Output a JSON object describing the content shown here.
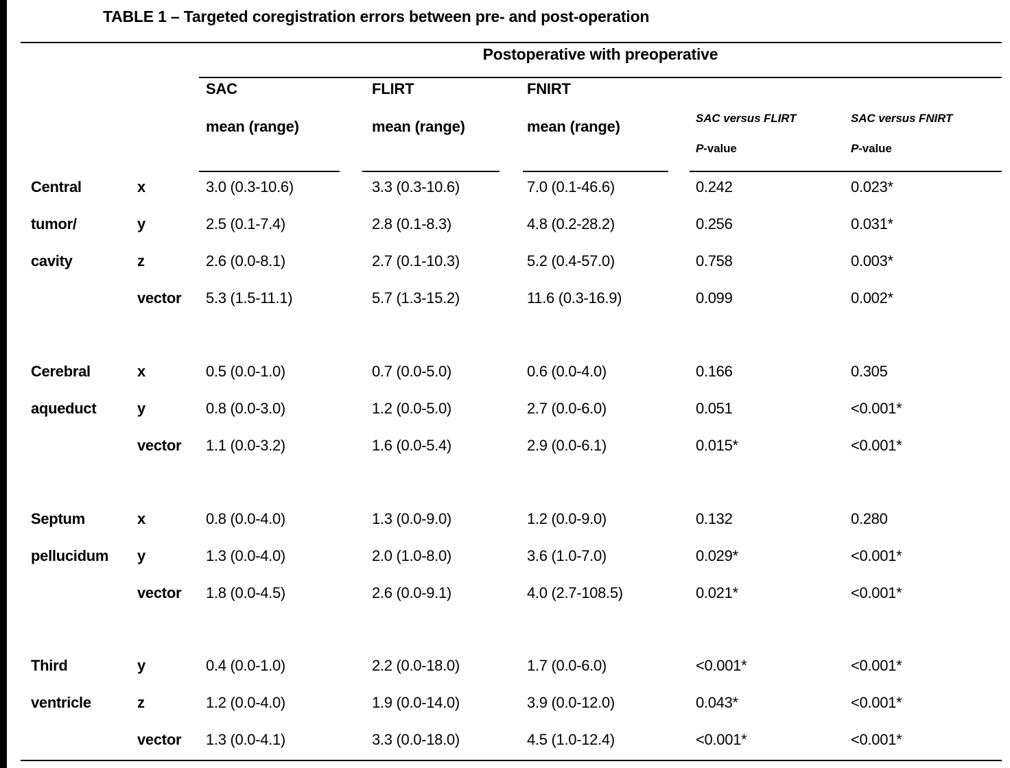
{
  "title": "TABLE 1 – Targeted coregistration errors between pre- and post-operation",
  "table": {
    "span_header": "Postoperative with preoperative",
    "method_columns": [
      {
        "name": "SAC",
        "sub": "mean (range)"
      },
      {
        "name": "FLIRT",
        "sub": "mean (range)"
      },
      {
        "name": "FNIRT",
        "sub": "mean (range)"
      }
    ],
    "comparison_columns": [
      {
        "name": "SAC versus FLIRT",
        "sub_italic": "P",
        "sub_rest": "-value"
      },
      {
        "name": "SAC versus FNIRT",
        "sub_italic": "P",
        "sub_rest": "-value"
      }
    ],
    "groups": [
      {
        "region": "Central tumor/cavity",
        "rows": [
          {
            "region": "Central",
            "axis": "x",
            "sac": "3.0 (0.3-10.6)",
            "flirt": "3.3 (0.3-10.6)",
            "fnirt": "7.0 (0.1-46.6)",
            "p_flirt": "0.242",
            "p_fnirt": "0.023*"
          },
          {
            "region": "tumor/",
            "axis": "y",
            "sac": "2.5 (0.1-7.4)",
            "flirt": "2.8 (0.1-8.3)",
            "fnirt": "4.8 (0.2-28.2)",
            "p_flirt": "0.256",
            "p_fnirt": "0.031*"
          },
          {
            "region": "cavity",
            "axis": "z",
            "sac": "2.6 (0.0-8.1)",
            "flirt": "2.7 (0.1-10.3)",
            "fnirt": "5.2 (0.4-57.0)",
            "p_flirt": "0.758",
            "p_fnirt": "0.003*"
          },
          {
            "region": "",
            "axis": "vector",
            "sac": "5.3 (1.5-11.1)",
            "flirt": "5.7 (1.3-15.2)",
            "fnirt": "11.6 (0.3-16.9)",
            "p_flirt": "0.099",
            "p_fnirt": "0.002*"
          }
        ]
      },
      {
        "region": "Cerebral aqueduct",
        "rows": [
          {
            "region": "Cerebral",
            "axis": "x",
            "sac": "0.5 (0.0-1.0)",
            "flirt": "0.7 (0.0-5.0)",
            "fnirt": "0.6 (0.0-4.0)",
            "p_flirt": "0.166",
            "p_fnirt": "0.305"
          },
          {
            "region": "aqueduct",
            "axis": "y",
            "sac": "0.8 (0.0-3.0)",
            "flirt": "1.2 (0.0-5.0)",
            "fnirt": "2.7 (0.0-6.0)",
            "p_flirt": "0.051",
            "p_fnirt": "<0.001*"
          },
          {
            "region": "",
            "axis": "vector",
            "sac": "1.1 (0.0-3.2)",
            "flirt": "1.6 (0.0-5.4)",
            "fnirt": "2.9 (0.0-6.1)",
            "p_flirt": "0.015*",
            "p_fnirt": "<0.001*"
          }
        ]
      },
      {
        "region": "Septum pellucidum",
        "rows": [
          {
            "region": "Septum",
            "axis": "x",
            "sac": "0.8 (0.0-4.0)",
            "flirt": "1.3 (0.0-9.0)",
            "fnirt": "1.2 (0.0-9.0)",
            "p_flirt": "0.132",
            "p_fnirt": "0.280"
          },
          {
            "region": "pellucidum",
            "axis": "y",
            "sac": "1.3 (0.0-4.0)",
            "flirt": "2.0 (1.0-8.0)",
            "fnirt": "3.6 (1.0-7.0)",
            "p_flirt": "0.029*",
            "p_fnirt": "<0.001*"
          },
          {
            "region": "",
            "axis": "vector",
            "sac": "1.8 (0.0-4.5)",
            "flirt": "2.6 (0.0-9.1)",
            "fnirt": "4.0 (2.7-108.5)",
            "p_flirt": "0.021*",
            "p_fnirt": "<0.001*"
          }
        ]
      },
      {
        "region": "Third ventricle",
        "rows": [
          {
            "region": "Third",
            "axis": "y",
            "sac": "0.4 (0.0-1.0)",
            "flirt": "2.2 (0.0-18.0)",
            "fnirt": "1.7 (0.0-6.0)",
            "p_flirt": "<0.001*",
            "p_fnirt": "<0.001*"
          },
          {
            "region": "ventricle",
            "axis": "z",
            "sac": "1.2 (0.0-4.0)",
            "flirt": "1.9 (0.0-14.0)",
            "fnirt": "3.9 (0.0-12.0)",
            "p_flirt": "0.043*",
            "p_fnirt": "<0.001*"
          },
          {
            "region": "",
            "axis": "vector",
            "sac": "1.3 (0.0-4.1)",
            "flirt": "3.3 (0.0-18.0)",
            "fnirt": "4.5 (1.0-12.4)",
            "p_flirt": "<0.001*",
            "p_fnirt": "<0.001*"
          }
        ]
      }
    ]
  }
}
